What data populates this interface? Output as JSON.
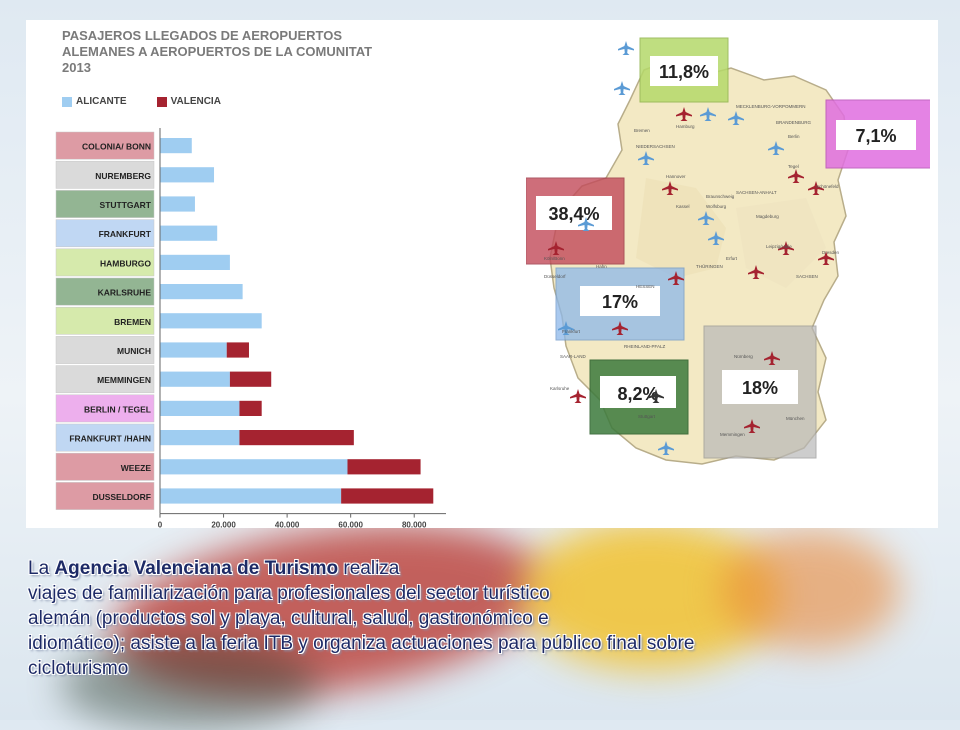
{
  "chart_data": {
    "type": "bar",
    "orientation": "horizontal",
    "stacked": true,
    "title": "PASAJEROS LLEGADOS DE AEROPUERTOS ALEMANES A AEROPUERTOS DE LA COMUNITAT 2013",
    "categories": [
      "COLONIA/ BONN",
      "NUREMBERG",
      "STUTTGART",
      "FRANKFURT",
      "HAMBURGO",
      "KARLSRUHE",
      "BREMEN",
      "MUNICH",
      "MEMMINGEN",
      "BERLIN / TEGEL",
      "FRANKFURT /HAHN",
      "WEEZE",
      "DUSSELDORF"
    ],
    "series": [
      {
        "name": "ALICANTE",
        "color": "#9fcdf1",
        "values": [
          10000,
          17000,
          11000,
          18000,
          22000,
          26000,
          32000,
          21000,
          22000,
          25000,
          25000,
          59000,
          57000
        ]
      },
      {
        "name": "VALENCIA",
        "color": "#a52330",
        "values": [
          0,
          0,
          0,
          0,
          0,
          0,
          0,
          7000,
          13000,
          7000,
          36000,
          23000,
          29000
        ]
      }
    ],
    "xlim": [
      0,
      90000
    ],
    "xticks": [
      "0",
      "20.000",
      "40.000",
      "60.000",
      "80.000"
    ],
    "xtick_values": [
      0,
      20000,
      40000,
      60000,
      80000
    ],
    "legend_position": "top-left",
    "grid": false
  },
  "map": {
    "regions": [
      {
        "label": "11,8%",
        "color": "#b5d96a"
      },
      {
        "label": "7,1%",
        "color": "#e06ee0"
      },
      {
        "label": "38,4%",
        "color": "#c24a5a"
      },
      {
        "label": "17%",
        "color": "#8db8ea"
      },
      {
        "label": "8,2%",
        "color": "#3c7a3c"
      },
      {
        "label": "18%",
        "color": "#b8b8b8"
      }
    ],
    "place_labels": [
      "Hamburg",
      "Bremen",
      "NIEDERSACHSEN",
      "Hannover",
      "Braunschweig",
      "Wolfsburg",
      "SACHSEN-ANHALT",
      "Magdeburg",
      "Berlin",
      "Tegel",
      "Schönefeld",
      "BRANDENBURG",
      "MECKLENBURG-VORPOMMERN",
      "Düsseldorf",
      "Köln/Bonn",
      "Frankfurt",
      "Hahn",
      "RHEINLAND-PFALZ",
      "SAAR-LAND",
      "Karlsruhe",
      "Stuttgart",
      "Nürnberg",
      "München",
      "Memmingen",
      "Leipzig/Halle",
      "Dresden",
      "SACHSEN",
      "Erfurt",
      "THÜRINGEN",
      "Kassel",
      "HESSEN"
    ]
  },
  "caption": {
    "line1_prefix": "La ",
    "line1_strong": "Agencia Valenciana de Turismo",
    "line1_suffix": " realiza",
    "line2": "viajes de familiarización para profesionales del sector turístico",
    "line3": "alemán (productos sol y playa, cultural, salud, gastronómico e",
    "line4": "idiomático); asiste a la feria ITB y organiza actuaciones para público final sobre",
    "line5": "cicloturismo"
  }
}
